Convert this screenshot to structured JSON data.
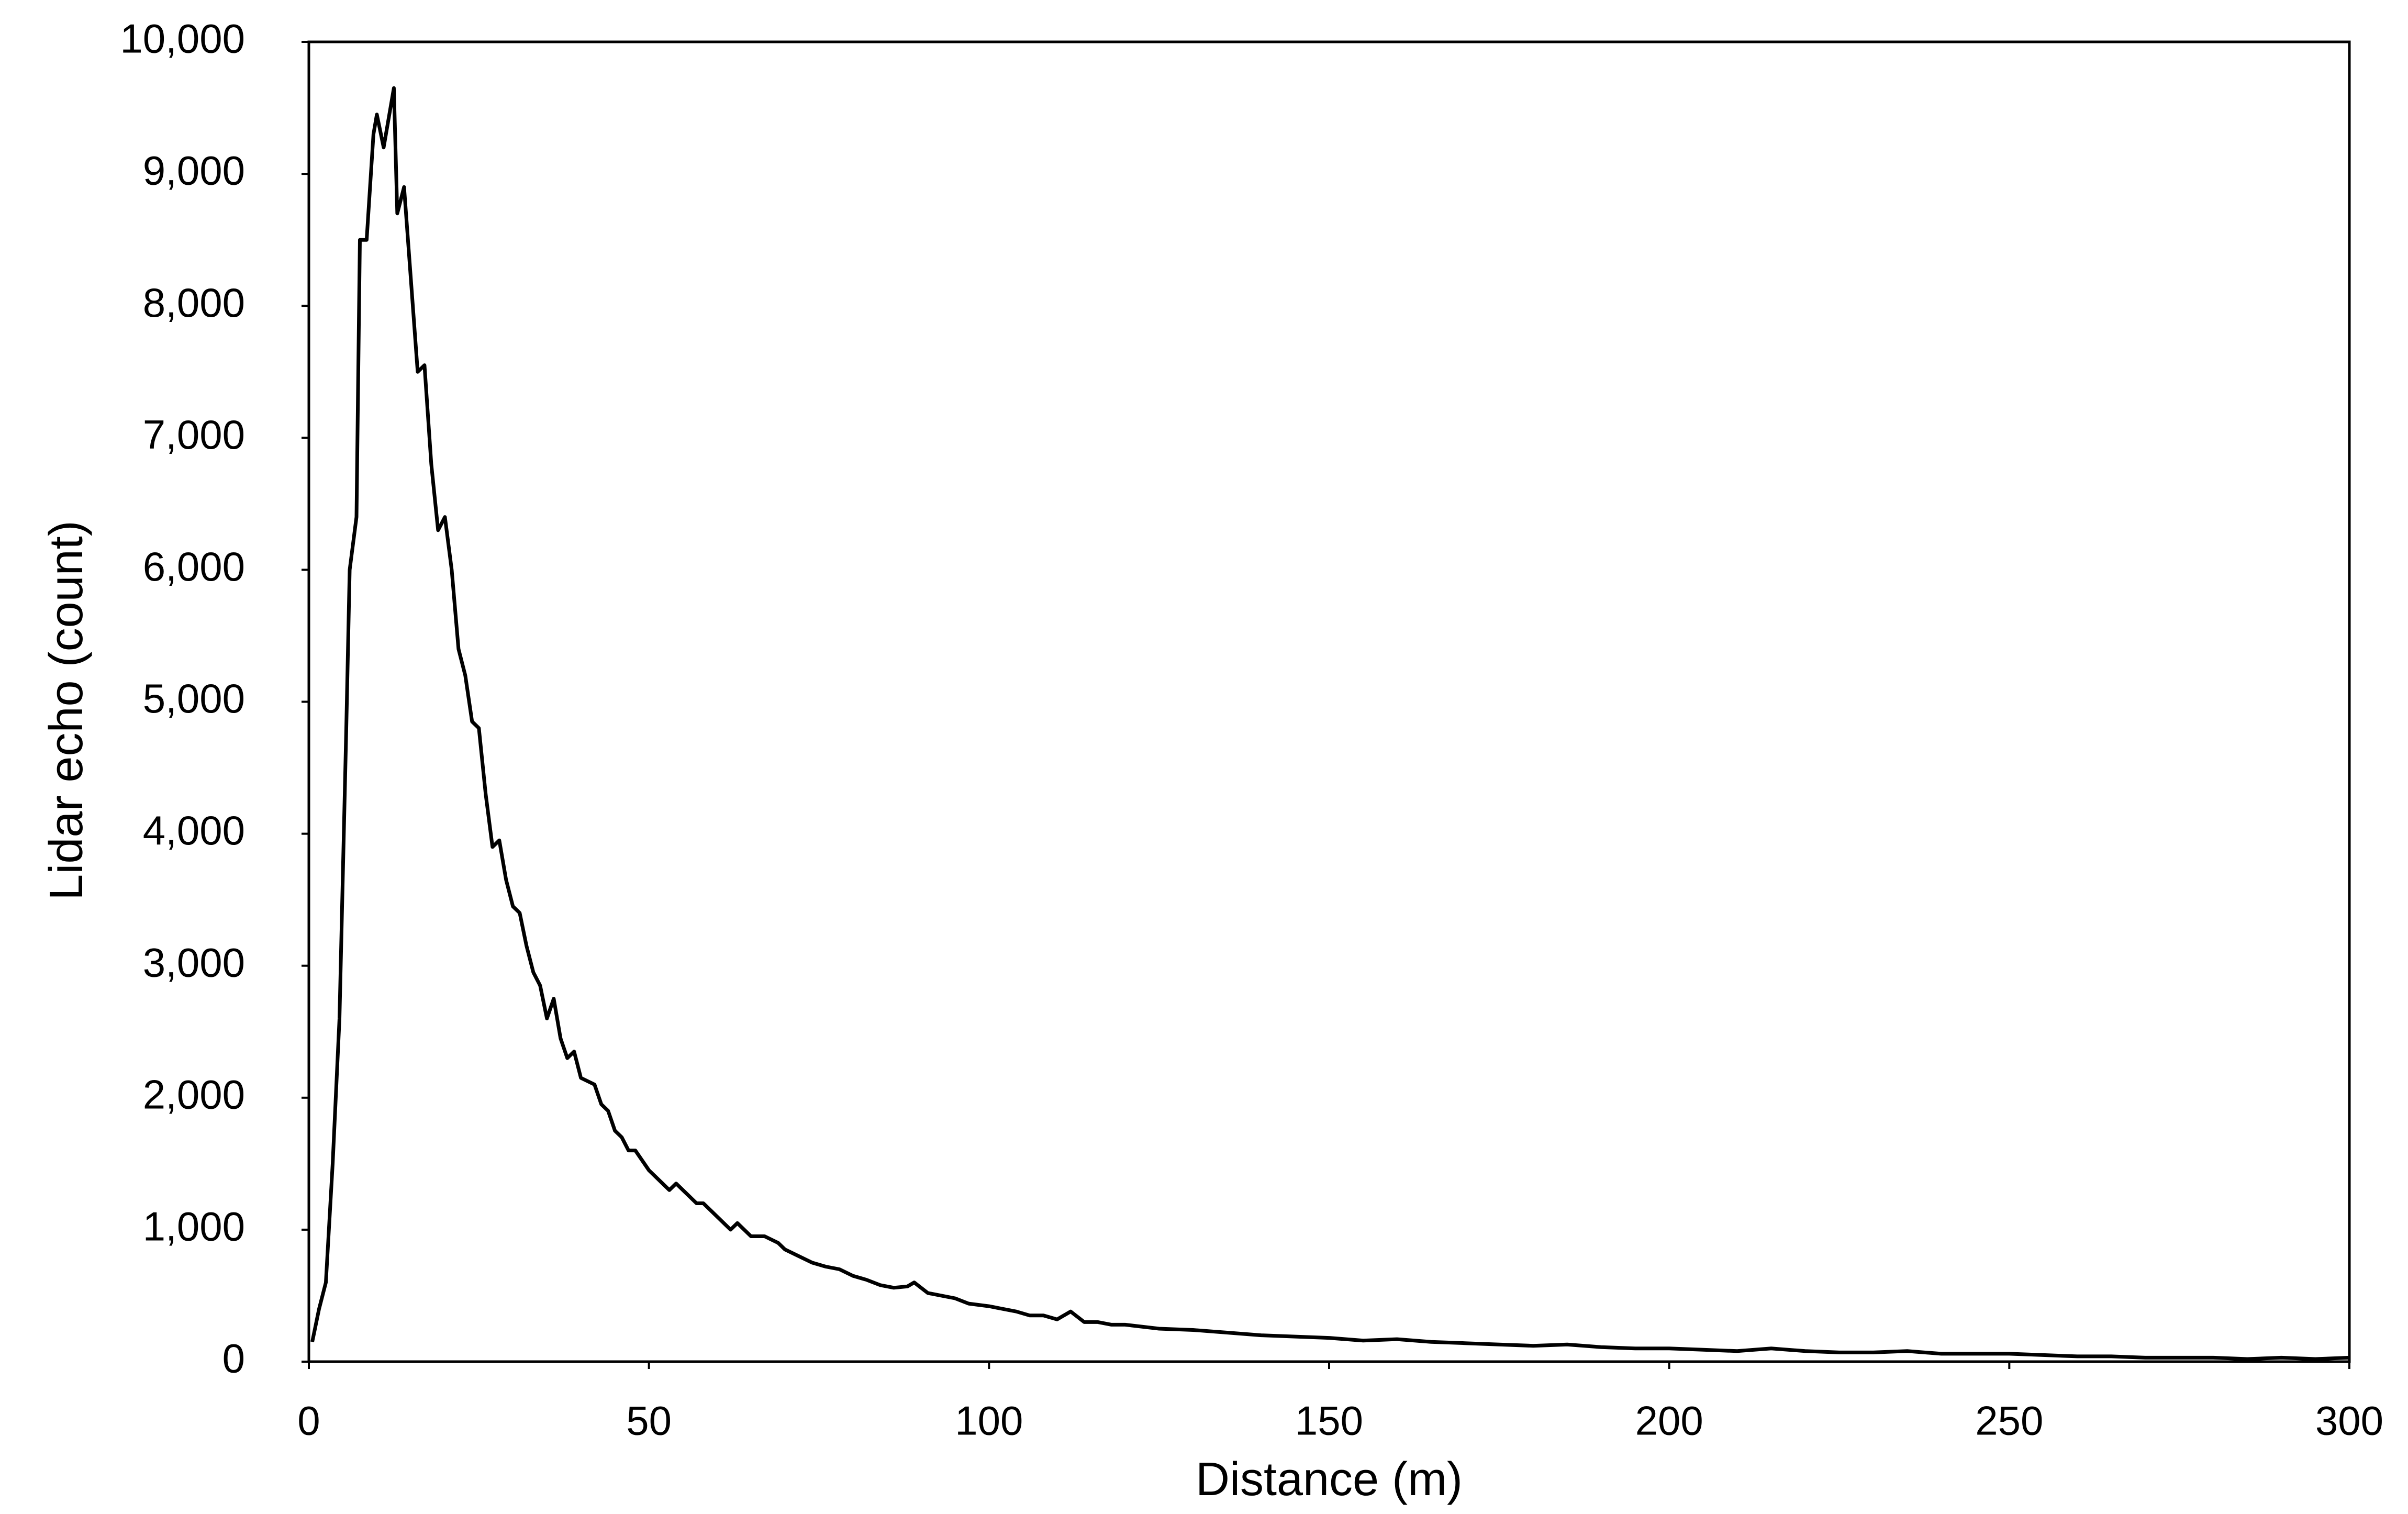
{
  "chart_data": {
    "type": "line",
    "xlabel": "Distance (m)",
    "ylabel": "Lidar echo (count)",
    "color": "#000000",
    "grid": false,
    "xlim": [
      0,
      300
    ],
    "ylim": [
      0,
      10000
    ],
    "xticks": [
      0,
      50,
      100,
      150,
      200,
      250,
      300
    ],
    "yticks": [
      0,
      {
        "value": 1000,
        "label": "1,000"
      },
      {
        "value": 2000,
        "label": "2,000"
      },
      {
        "value": 3000,
        "label": "3,000"
      },
      {
        "value": 4000,
        "label": "4,000"
      },
      {
        "value": 5000,
        "label": "5,000"
      },
      {
        "value": 6000,
        "label": "6,000"
      },
      {
        "value": 7000,
        "label": "7,000"
      },
      {
        "value": 8000,
        "label": "8,000"
      },
      {
        "value": 9000,
        "label": "9,000"
      },
      {
        "value": 10000,
        "label": "10,000"
      }
    ],
    "x": [
      0.5,
      1.5,
      2.5,
      3.5,
      4.5,
      5.5,
      6,
      7,
      7.5,
      8.5,
      9.5,
      10,
      11,
      12,
      12.5,
      13,
      14,
      15,
      16,
      17,
      18,
      19,
      20,
      21,
      22,
      23,
      24,
      25,
      26,
      27,
      28,
      29,
      30,
      31,
      32,
      33,
      34,
      35,
      36,
      37,
      38,
      39,
      40,
      42,
      43,
      44,
      45,
      46,
      47,
      48,
      50,
      52,
      53,
      54,
      56,
      57,
      58,
      60,
      62,
      63,
      65,
      67,
      69,
      70,
      72,
      74,
      76,
      78,
      80,
      82,
      84,
      86,
      88,
      89,
      91,
      93,
      95,
      97,
      100,
      102,
      104,
      106,
      108,
      110,
      112,
      114,
      116,
      118,
      120,
      125,
      130,
      135,
      140,
      145,
      150,
      155,
      160,
      165,
      170,
      175,
      180,
      185,
      190,
      195,
      200,
      205,
      210,
      215,
      220,
      225,
      230,
      235,
      240,
      245,
      250,
      255,
      260,
      265,
      270,
      275,
      280,
      285,
      290,
      295,
      300
    ],
    "values": [
      150,
      400,
      600,
      1500,
      2600,
      4800,
      6000,
      6400,
      8500,
      8500,
      9300,
      9450,
      9200,
      9500,
      9650,
      8700,
      8900,
      8200,
      7500,
      7550,
      6800,
      6300,
      6400,
      6000,
      5400,
      5200,
      4850,
      4800,
      4300,
      3900,
      3950,
      3650,
      3450,
      3400,
      3150,
      2950,
      2850,
      2600,
      2750,
      2450,
      2300,
      2350,
      2150,
      2100,
      1950,
      1900,
      1750,
      1700,
      1600,
      1600,
      1450,
      1350,
      1300,
      1350,
      1250,
      1200,
      1200,
      1100,
      1000,
      1050,
      950,
      950,
      900,
      850,
      800,
      750,
      720,
      700,
      650,
      620,
      580,
      560,
      570,
      600,
      520,
      500,
      480,
      440,
      420,
      400,
      380,
      350,
      350,
      320,
      380,
      300,
      300,
      280,
      280,
      250,
      240,
      220,
      200,
      190,
      180,
      160,
      170,
      150,
      140,
      130,
      120,
      130,
      110,
      100,
      100,
      90,
      80,
      100,
      80,
      70,
      70,
      80,
      60,
      60,
      60,
      50,
      40,
      40,
      30,
      30,
      30,
      20,
      30,
      20,
      30
    ]
  }
}
